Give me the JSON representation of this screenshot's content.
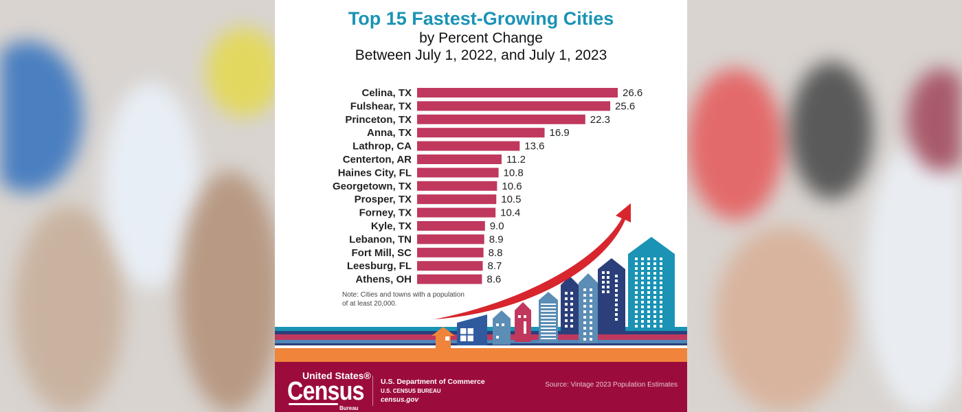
{
  "chart_data": {
    "type": "bar",
    "orientation": "horizontal",
    "title": "Top 15 Fastest-Growing Cities",
    "subtitle": [
      "by Percent Change",
      "Between July 1, 2022, and July 1, 2023"
    ],
    "categories": [
      "Celina, TX",
      "Fulshear, TX",
      "Princeton, TX",
      "Anna, TX",
      "Lathrop, CA",
      "Centerton, AR",
      "Haines City, FL",
      "Georgetown, TX",
      "Prosper, TX",
      "Forney, TX",
      "Kyle, TX",
      "Lebanon, TN",
      "Fort Mill, SC",
      "Leesburg, FL",
      "Athens, OH"
    ],
    "values": [
      26.6,
      25.6,
      22.3,
      16.9,
      13.6,
      11.2,
      10.8,
      10.6,
      10.5,
      10.4,
      9.0,
      8.9,
      8.8,
      8.7,
      8.6
    ],
    "value_labels": [
      "26.6",
      "25.6",
      "22.3",
      "16.9",
      "13.6",
      "11.2",
      "10.8",
      "10.6",
      "10.5",
      "10.4",
      "9.0",
      "8.9",
      "8.8",
      "8.7",
      "8.6"
    ],
    "xlim": [
      0,
      26.6
    ],
    "grid": false,
    "bar_color": "#c0385d",
    "title_color": "#1a93b5"
  },
  "note": [
    "Note: Cities and towns with a population",
    "of at least 20,000."
  ],
  "footer": {
    "logo": {
      "line1": "United States®",
      "line2": "Census",
      "line3": "Bureau"
    },
    "dept": "U.S. Department of Commerce",
    "bureau": "U.S. CENSUS BUREAU",
    "website": "census.gov",
    "source": "Source: Vintage 2023 Population Estimates",
    "color": "#9b0c3c"
  }
}
